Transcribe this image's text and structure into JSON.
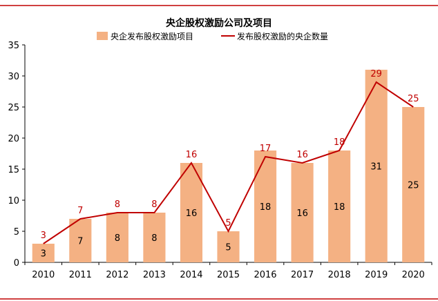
{
  "chart_data": {
    "type": "bar",
    "title": "央企股权激励公司及项目",
    "categories": [
      "2010",
      "2011",
      "2012",
      "2013",
      "2014",
      "2015",
      "2016",
      "2017",
      "2018",
      "2019",
      "2020"
    ],
    "series": [
      {
        "name": "央企发布股权激励项目",
        "kind": "bar",
        "color": "#f4b183",
        "values": [
          3,
          7,
          8,
          8,
          16,
          5,
          18,
          16,
          18,
          31,
          25
        ]
      },
      {
        "name": "发布股权激励的央企数量",
        "kind": "line",
        "color": "#c00000",
        "values": [
          3,
          7,
          8,
          8,
          16,
          5,
          17,
          16,
          18,
          29,
          25
        ]
      }
    ],
    "ylim": [
      0,
      35
    ],
    "yticks": [
      0,
      5,
      10,
      15,
      20,
      25,
      30,
      35
    ],
    "legend": "top-center",
    "grid": false
  }
}
